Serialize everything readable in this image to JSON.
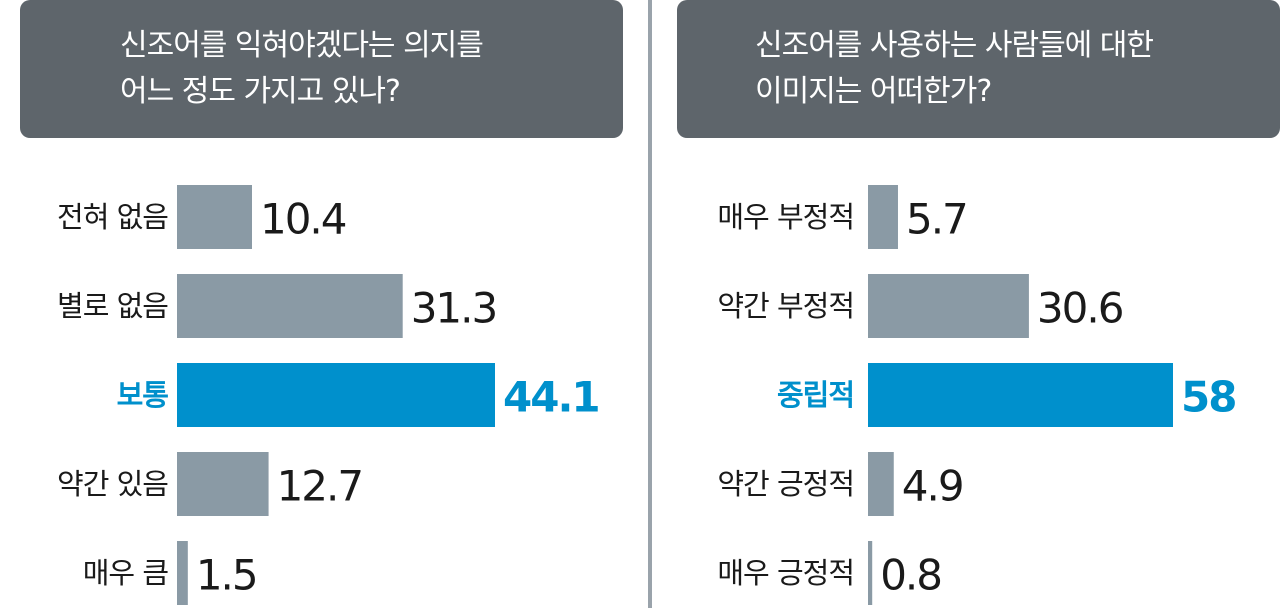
{
  "colors": {
    "header_bg": "#5e656b",
    "bar_default": "#8a9aa5",
    "bar_highlight": "#0090cc",
    "text_default": "#1a1a1a",
    "text_highlight": "#0090cc",
    "divider": "#9aa3ab"
  },
  "chart_data": [
    {
      "type": "bar",
      "orientation": "horizontal",
      "title_lines": [
        "신조어를 익혀야겠다는 의지를",
        "어느 정도 가지고 있나?"
      ],
      "categories": [
        "전혀 없음",
        "별로 없음",
        "보통",
        "약간 있음",
        "매우 큼"
      ],
      "values": [
        10.4,
        31.3,
        44.1,
        12.7,
        1.5
      ],
      "value_labels": [
        "10.4",
        "31.3",
        "44.1",
        "12.7",
        "1.5"
      ],
      "highlight_index": 2,
      "xlim": [
        0,
        44.1
      ]
    },
    {
      "type": "bar",
      "orientation": "horizontal",
      "title_lines": [
        "신조어를 사용하는 사람들에 대한",
        "이미지는 어떠한가?"
      ],
      "categories": [
        "매우 부정적",
        "약간 부정적",
        "중립적",
        "약간 긍정적",
        "매우 긍정적"
      ],
      "values": [
        5.7,
        30.6,
        58,
        4.9,
        0.8
      ],
      "value_labels": [
        "5.7",
        "30.6",
        "58",
        "4.9",
        "0.8"
      ],
      "highlight_index": 2,
      "xlim": [
        0,
        58
      ]
    }
  ]
}
